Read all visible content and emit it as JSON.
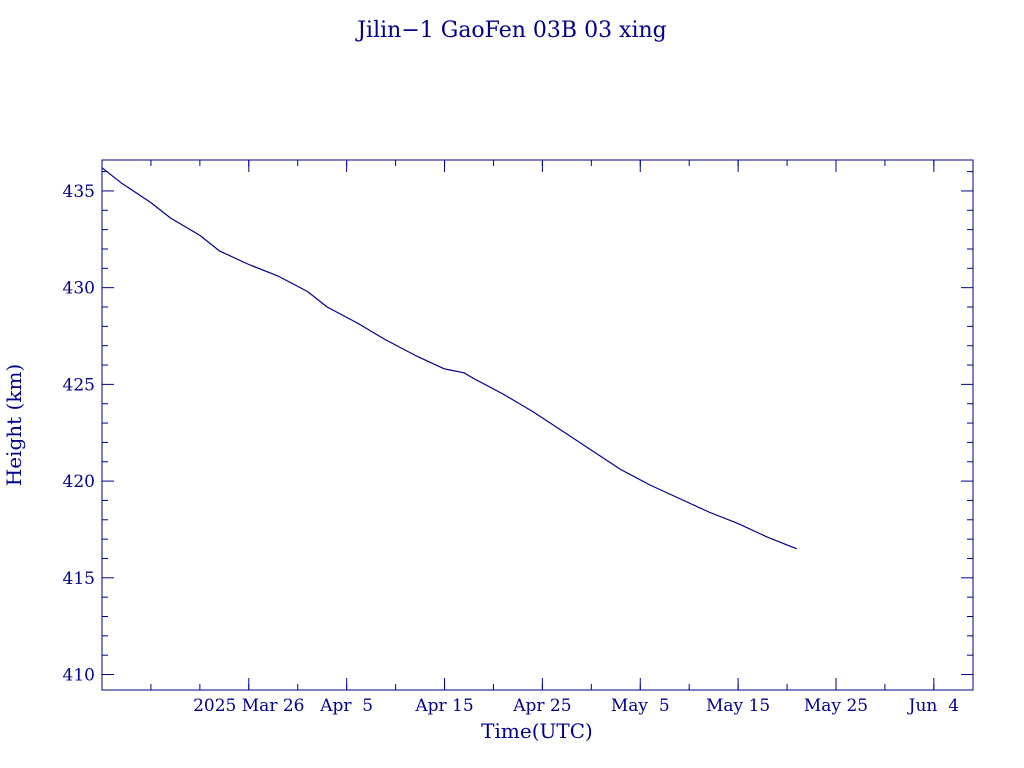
{
  "chart_data": {
    "type": "line",
    "title": "Jilin−1 GaoFen 03B 03 xing",
    "xlabel": "Time(UTC)",
    "ylabel": "Height (km)",
    "xlim": [
      "2025-03-11",
      "2025-06-08"
    ],
    "ylim": [
      409.2,
      436.6
    ],
    "x_ticks": [
      {
        "date": "2025-03-26",
        "label": "2025 Mar 26"
      },
      {
        "date": "2025-04-05",
        "label": "Apr  5"
      },
      {
        "date": "2025-04-15",
        "label": "Apr 15"
      },
      {
        "date": "2025-04-25",
        "label": "Apr 25"
      },
      {
        "date": "2025-05-05",
        "label": "May  5"
      },
      {
        "date": "2025-05-15",
        "label": "May 15"
      },
      {
        "date": "2025-05-25",
        "label": "May 25"
      },
      {
        "date": "2025-06-04",
        "label": "Jun  4"
      }
    ],
    "y_ticks": [
      410,
      415,
      420,
      425,
      430,
      435
    ],
    "grid": false,
    "colors": {
      "axis": "#00008b",
      "line": "#00008b"
    },
    "series": [
      {
        "x": [
          "2025-03-11",
          "2025-03-13",
          "2025-03-16",
          "2025-03-18",
          "2025-03-21",
          "2025-03-23",
          "2025-03-26",
          "2025-03-29",
          "2025-04-01",
          "2025-04-03",
          "2025-04-06",
          "2025-04-09",
          "2025-04-12",
          "2025-04-15",
          "2025-04-17",
          "2025-04-18",
          "2025-04-21",
          "2025-04-24",
          "2025-04-27",
          "2025-04-30",
          "2025-05-03",
          "2025-05-06",
          "2025-05-09",
          "2025-05-12",
          "2025-05-15",
          "2025-05-18",
          "2025-05-21"
        ],
        "y": [
          436.2,
          435.4,
          434.4,
          433.6,
          432.7,
          431.9,
          431.2,
          430.6,
          429.8,
          429.0,
          428.2,
          427.3,
          426.5,
          425.8,
          425.6,
          425.3,
          424.5,
          423.6,
          422.6,
          421.6,
          420.6,
          419.8,
          419.1,
          418.4,
          417.8,
          417.1,
          416.5
        ]
      }
    ]
  }
}
